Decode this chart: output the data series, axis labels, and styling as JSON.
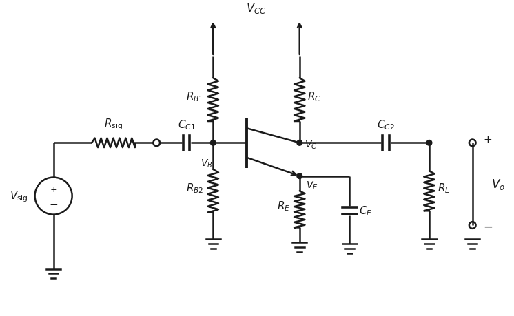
{
  "bg_color": "#ffffff",
  "line_color": "#1a1a1a",
  "line_width": 1.8,
  "font_size": 11,
  "fig_width": 7.46,
  "fig_height": 4.6
}
